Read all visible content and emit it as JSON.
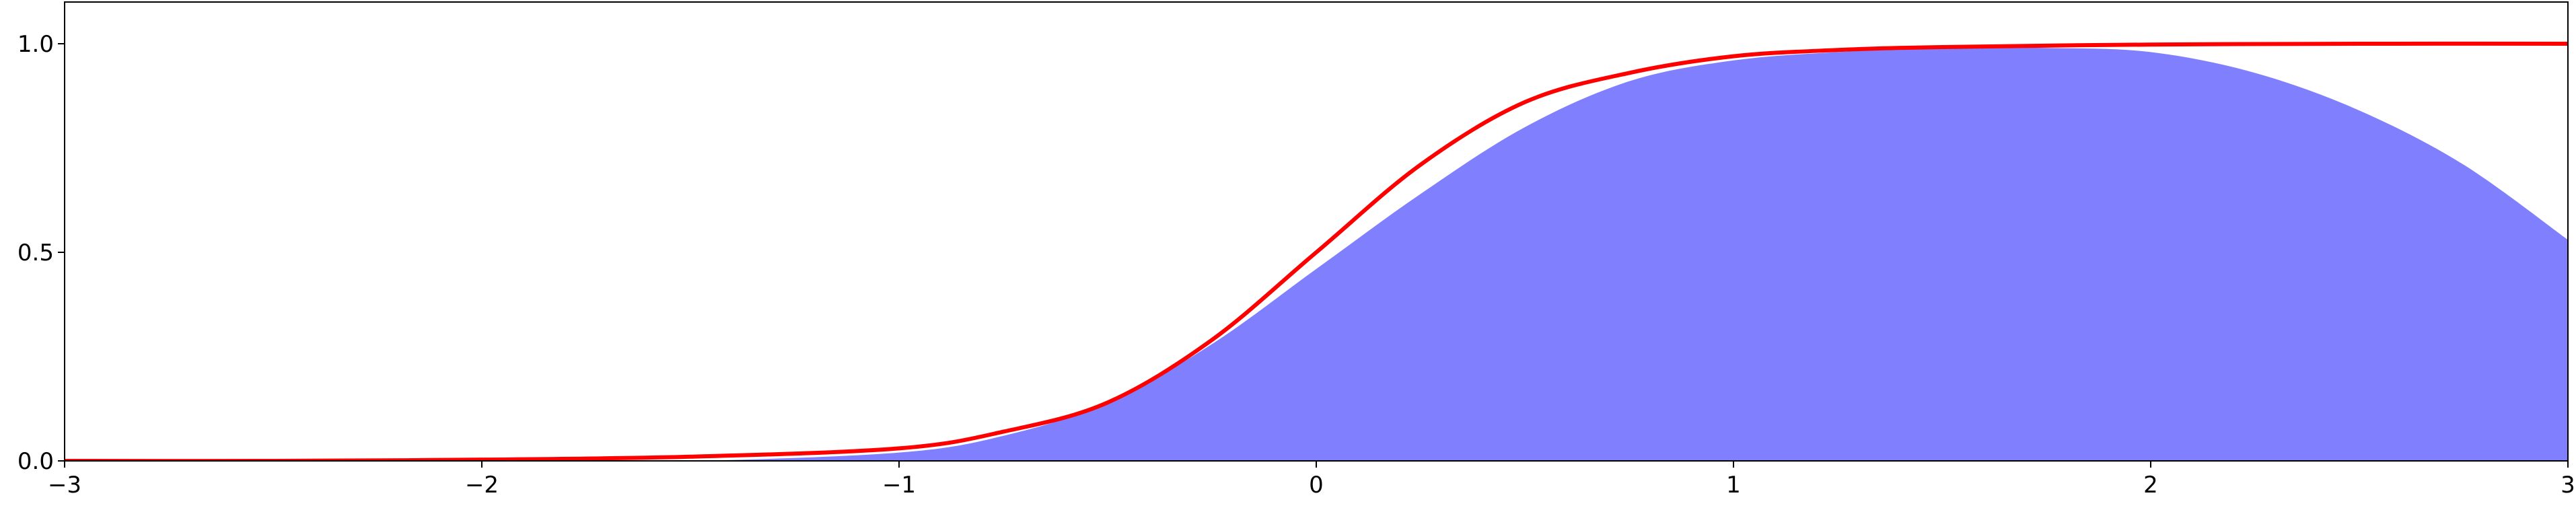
{
  "chart_data": {
    "type": "area",
    "title": "",
    "xlabel": "",
    "ylabel": "",
    "xlim": [
      -3,
      3
    ],
    "ylim": [
      0,
      1.1
    ],
    "grid": false,
    "x_ticks": [
      {
        "value": -3,
        "label": "−3"
      },
      {
        "value": -2,
        "label": "−2"
      },
      {
        "value": -1,
        "label": "−1"
      },
      {
        "value": 0,
        "label": "0"
      },
      {
        "value": 1,
        "label": "1"
      },
      {
        "value": 2,
        "label": "2"
      },
      {
        "value": 3,
        "label": "3"
      }
    ],
    "y_ticks": [
      {
        "value": 0.0,
        "label": "0.0"
      },
      {
        "value": 0.5,
        "label": "0.5"
      },
      {
        "value": 1.0,
        "label": "1.0"
      }
    ],
    "series": [
      {
        "kind": "area",
        "color": "#8080ff",
        "x": [
          -3,
          -2,
          -1.5,
          -1,
          -0.75,
          -0.5,
          -0.25,
          0,
          0.25,
          0.5,
          0.75,
          1,
          1.25,
          1.5,
          1.75,
          2,
          2.25,
          2.5,
          2.75,
          3
        ],
        "y": [
          0.0,
          0.0,
          0.0,
          0.02,
          0.06,
          0.14,
          0.28,
          0.46,
          0.64,
          0.8,
          0.91,
          0.96,
          0.98,
          0.99,
          0.99,
          0.98,
          0.93,
          0.84,
          0.71,
          0.53
        ]
      },
      {
        "kind": "line",
        "color": "#ff0000",
        "x": [
          -3,
          -2.5,
          -2,
          -1.5,
          -1,
          -0.75,
          -0.5,
          -0.25,
          0,
          0.25,
          0.5,
          0.75,
          1,
          1.25,
          1.5,
          2,
          2.5,
          3
        ],
        "y": [
          0.0,
          0.0,
          0.003,
          0.01,
          0.03,
          0.07,
          0.14,
          0.29,
          0.5,
          0.71,
          0.86,
          0.93,
          0.97,
          0.985,
          0.992,
          0.998,
          1.0,
          1.0
        ]
      }
    ]
  }
}
